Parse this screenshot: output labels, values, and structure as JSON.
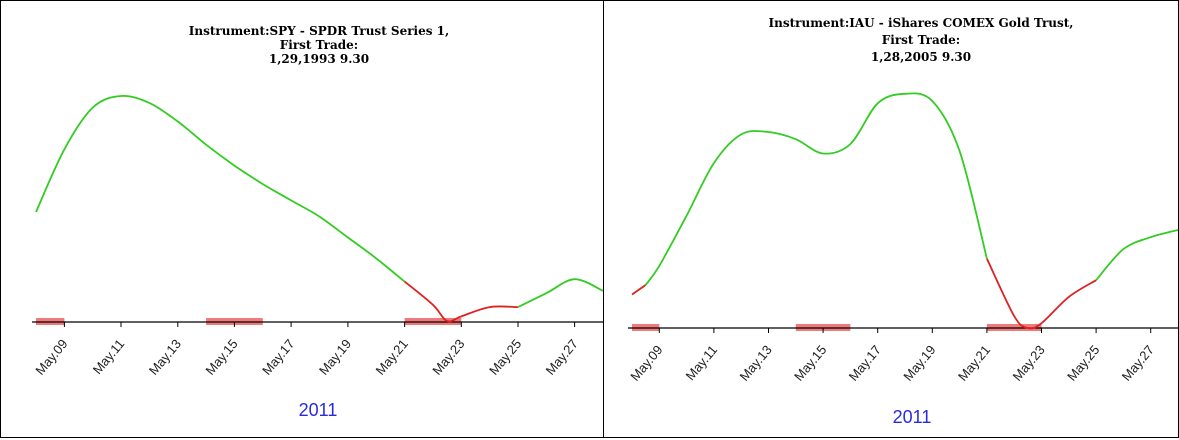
{
  "colors": {
    "up": "#33cc22",
    "down": "#dd2222",
    "band": "#f07a7a",
    "axis": "#000000",
    "year": "#2a2ae0"
  },
  "chart_data": [
    {
      "type": "line",
      "title_lines": [
        "Instrument:SPY - SPDR Trust Series 1,",
        "First Trade:",
        "1,29,1993 9.30"
      ],
      "year_label": "2011",
      "tick_labels": [
        "May.09",
        "May.11",
        "May.13",
        "May.15",
        "May.17",
        "May.19",
        "May.21",
        "May.23",
        "May.25",
        "May.27"
      ],
      "series": [
        {
          "color": "up",
          "values": [
            [
              "2011-05-08",
              0.47
            ],
            [
              "2011-05-09",
              0.74
            ],
            [
              "2011-05-10",
              0.92
            ],
            [
              "2011-05-11",
              0.97
            ],
            [
              "2011-05-12",
              0.94
            ],
            [
              "2011-05-13",
              0.86
            ],
            [
              "2011-05-14",
              0.76
            ],
            [
              "2011-05-15",
              0.67
            ],
            [
              "2011-05-16",
              0.59
            ],
            [
              "2011-05-17",
              0.52
            ],
            [
              "2011-05-18",
              0.45
            ],
            [
              "2011-05-19",
              0.36
            ],
            [
              "2011-05-20",
              0.27
            ],
            [
              "2011-05-21",
              0.17
            ]
          ]
        },
        {
          "color": "down",
          "values": [
            [
              "2011-05-21",
              0.17
            ],
            [
              "2011-05-22",
              0.07
            ],
            [
              "2011-05-22.5",
              0.0
            ],
            [
              "2011-05-23",
              0.02
            ],
            [
              "2011-05-24",
              0.06
            ],
            [
              "2011-05-25",
              0.06
            ]
          ]
        },
        {
          "color": "up",
          "values": [
            [
              "2011-05-25",
              0.06
            ],
            [
              "2011-05-26",
              0.12
            ],
            [
              "2011-05-27",
              0.18
            ],
            [
              "2011-05-28",
              0.13
            ]
          ]
        }
      ],
      "bands": [
        [
          "2011-05-08",
          "2011-05-09"
        ],
        [
          "2011-05-14",
          "2011-05-16"
        ],
        [
          "2011-05-21",
          "2011-05-23"
        ]
      ]
    },
    {
      "type": "line",
      "title_lines": [
        "Instrument:IAU - iShares COMEX Gold Trust,",
        "First Trade:",
        "1,28,2005 9.30"
      ],
      "year_label": "2011",
      "tick_labels": [
        "May.09",
        "May.11",
        "May.13",
        "May.15",
        "May.17",
        "May.19",
        "May.21",
        "May.23",
        "May.25",
        "May.27"
      ],
      "series": [
        {
          "color": "down",
          "values": [
            [
              "2011-05-08",
              0.14
            ],
            [
              "2011-05-08.5",
              0.18
            ]
          ]
        },
        {
          "color": "up",
          "values": [
            [
              "2011-05-08.5",
              0.18
            ],
            [
              "2011-05-09",
              0.26
            ],
            [
              "2011-05-10",
              0.47
            ],
            [
              "2011-05-11",
              0.69
            ],
            [
              "2011-05-12",
              0.81
            ],
            [
              "2011-05-13",
              0.82
            ],
            [
              "2011-05-14",
              0.79
            ],
            [
              "2011-05-15",
              0.73
            ],
            [
              "2011-05-16",
              0.77
            ],
            [
              "2011-05-17",
              0.94
            ],
            [
              "2011-05-18",
              0.98
            ],
            [
              "2011-05-19",
              0.95
            ],
            [
              "2011-05-20",
              0.74
            ],
            [
              "2011-05-21",
              0.29
            ]
          ]
        },
        {
          "color": "down",
          "values": [
            [
              "2011-05-21",
              0.29
            ],
            [
              "2011-05-22",
              0.05
            ],
            [
              "2011-05-22.5",
              0.0
            ],
            [
              "2011-05-23",
              0.02
            ],
            [
              "2011-05-24",
              0.13
            ],
            [
              "2011-05-25",
              0.2
            ]
          ]
        },
        {
          "color": "up",
          "values": [
            [
              "2011-05-25",
              0.2
            ],
            [
              "2011-05-26",
              0.33
            ],
            [
              "2011-05-27",
              0.38
            ],
            [
              "2011-05-28",
              0.41
            ]
          ]
        }
      ],
      "bands": [
        [
          "2011-05-08",
          "2011-05-09"
        ],
        [
          "2011-05-14",
          "2011-05-16"
        ],
        [
          "2011-05-21",
          "2011-05-23"
        ]
      ]
    }
  ]
}
